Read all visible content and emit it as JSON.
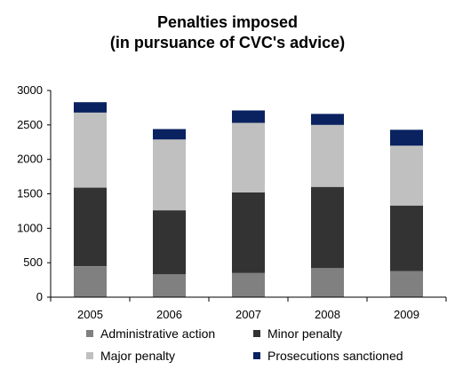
{
  "chart_data": {
    "type": "bar",
    "stacked": true,
    "title_lines": [
      "Penalties imposed",
      "(in pursuance of CVC's advice)"
    ],
    "categories": [
      "2005",
      "2006",
      "2007",
      "2008",
      "2009"
    ],
    "series": [
      {
        "name": "Administrative action",
        "color": "#808080",
        "values": [
          450,
          330,
          350,
          420,
          380
        ]
      },
      {
        "name": "Minor penalty",
        "color": "#333333",
        "values": [
          1140,
          930,
          1170,
          1180,
          950
        ]
      },
      {
        "name": "Major penalty",
        "color": "#c0c0c0",
        "values": [
          1090,
          1030,
          1010,
          900,
          870
        ]
      },
      {
        "name": "Prosecutions sanctioned",
        "color": "#0a2260",
        "values": [
          150,
          150,
          180,
          160,
          230
        ]
      }
    ],
    "xlabel": "",
    "ylabel": "",
    "ylim": [
      0,
      3000
    ],
    "yticks": [
      "0",
      "500",
      "1000",
      "1500",
      "2000",
      "2500",
      "3000"
    ],
    "grid": false,
    "legend_position": "bottom"
  }
}
